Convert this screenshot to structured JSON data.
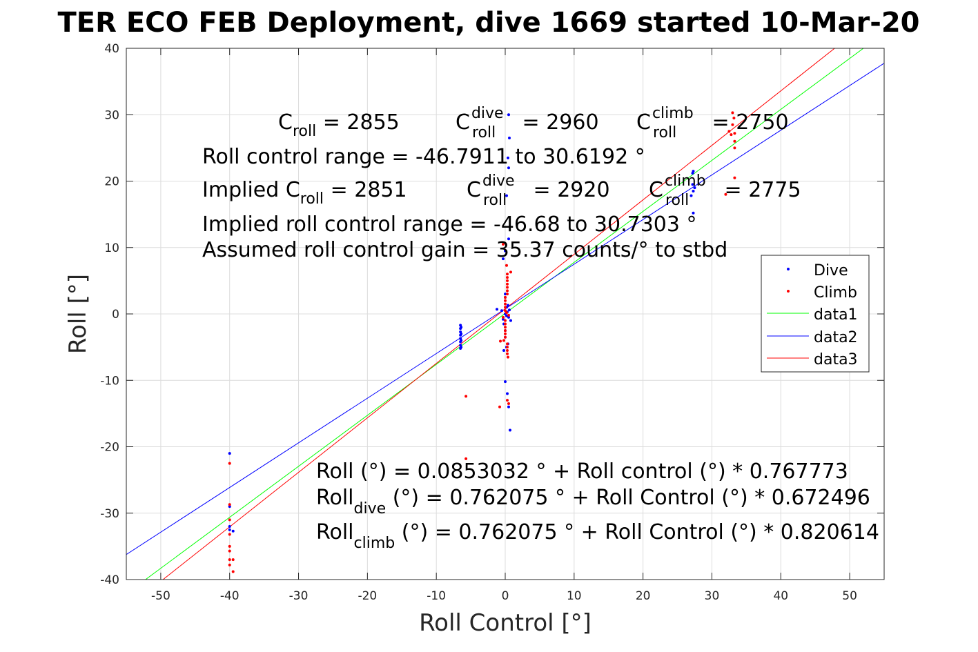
{
  "chart_data": {
    "type": "scatter",
    "title": "TER ECO FEB Deployment, dive 1669 started 10-Mar-20",
    "xlabel": "Roll Control [°]",
    "ylabel": "Roll [°]",
    "xlim": [
      -55,
      55
    ],
    "ylim": [
      -40,
      40
    ],
    "xticks": [
      -50,
      -40,
      -30,
      -20,
      -10,
      0,
      10,
      20,
      30,
      40,
      50
    ],
    "yticks": [
      -40,
      -30,
      -20,
      -10,
      0,
      10,
      20,
      30,
      40
    ],
    "xtick_labels": [
      "-50",
      "-40",
      "-30",
      "-20",
      "-10",
      "0",
      "10",
      "20",
      "30",
      "40",
      "50"
    ],
    "ytick_labels": [
      "-40",
      "-30",
      "-20",
      "-10",
      "0",
      "10",
      "20",
      "30",
      "40"
    ],
    "grid": true,
    "legend_position": "right",
    "series": [
      {
        "name": "Dive",
        "kind": "points",
        "color": "#0000ff",
        "points": [
          [
            -40,
            -21
          ],
          [
            -40,
            -29
          ],
          [
            -40,
            -32
          ],
          [
            -40,
            -32.5
          ],
          [
            -39.5,
            -32.7
          ],
          [
            -6.5,
            -1.7
          ],
          [
            -6.5,
            -2.2
          ],
          [
            -6.5,
            -2.7
          ],
          [
            -6.5,
            -3.2
          ],
          [
            -6.5,
            -3.7
          ],
          [
            -6.5,
            -4.2
          ],
          [
            -6.5,
            -4.7
          ],
          [
            -6.5,
            -5.2
          ],
          [
            -6.4,
            -2.0
          ],
          [
            -6.4,
            -3.0
          ],
          [
            -6.4,
            -4.0
          ],
          [
            -6.4,
            -5.0
          ],
          [
            -1.2,
            0.7
          ],
          [
            -0.5,
            0.5
          ],
          [
            0,
            0
          ],
          [
            0.2,
            -0.3
          ],
          [
            0.3,
            0.3
          ],
          [
            0.5,
            -0.5
          ],
          [
            0.4,
            1.3
          ],
          [
            0.6,
            0.6
          ],
          [
            0.8,
            -1.0
          ],
          [
            -0.3,
            -0.8
          ],
          [
            0,
            2.5
          ],
          [
            0,
            3.0
          ],
          [
            0.2,
            1.0
          ],
          [
            -0.2,
            -1.5
          ],
          [
            0,
            -2.5
          ],
          [
            0,
            -3.5
          ],
          [
            0.4,
            -4.5
          ],
          [
            -0.2,
            -5.5
          ],
          [
            0.2,
            -5.0
          ],
          [
            -0.3,
            8.3
          ],
          [
            0,
            9.5
          ],
          [
            0.5,
            11.3
          ],
          [
            0.2,
            17.8
          ],
          [
            0.5,
            22.0
          ],
          [
            0.4,
            23.5
          ],
          [
            0.6,
            26.5
          ],
          [
            0.5,
            30.0
          ],
          [
            0,
            -10.2
          ],
          [
            0.3,
            -12.0
          ],
          [
            0.5,
            -14.0
          ],
          [
            0.7,
            -17.5
          ],
          [
            27.2,
            21.2
          ],
          [
            27.3,
            21.5
          ],
          [
            27.2,
            19.5
          ],
          [
            27.3,
            18.5
          ],
          [
            27.0,
            17.8
          ],
          [
            27.3,
            15.2
          ],
          [
            27.5,
            19.0
          ]
        ]
      },
      {
        "name": "Climb",
        "kind": "points",
        "color": "#ff0000",
        "points": [
          [
            -40,
            -22.5
          ],
          [
            -40,
            -28.7
          ],
          [
            -40,
            -31.0
          ],
          [
            -40,
            -33.2
          ],
          [
            -40,
            -35.0
          ],
          [
            -40,
            -35.7
          ],
          [
            -40,
            -37.0
          ],
          [
            -40,
            -37.8
          ],
          [
            -39.5,
            -37.0
          ],
          [
            -39.5,
            -38.8
          ],
          [
            -5.7,
            -12.4
          ],
          [
            -5.7,
            -21.8
          ],
          [
            -0.8,
            -14.0
          ],
          [
            0.2,
            7.3
          ],
          [
            0.3,
            6.0
          ],
          [
            0.3,
            5.5
          ],
          [
            0.3,
            5.0
          ],
          [
            0.3,
            4.5
          ],
          [
            0.3,
            4.0
          ],
          [
            0.3,
            3.5
          ],
          [
            0.3,
            3.0
          ],
          [
            0,
            2.5
          ],
          [
            0,
            2.0
          ],
          [
            0,
            1.5
          ],
          [
            0,
            1.0
          ],
          [
            0,
            0.5
          ],
          [
            0.2,
            0.2
          ],
          [
            0.5,
            -0.2
          ],
          [
            -0.3,
            -0.5
          ],
          [
            0,
            -1.0
          ],
          [
            0,
            -1.5
          ],
          [
            0,
            -2.0
          ],
          [
            0,
            -2.5
          ],
          [
            0,
            -3.0
          ],
          [
            0,
            -3.5
          ],
          [
            -0.2,
            -4.0
          ],
          [
            -0.7,
            -4.1
          ],
          [
            0.3,
            -4.5
          ],
          [
            0.3,
            -5.0
          ],
          [
            0.3,
            -5.5
          ],
          [
            0.3,
            -6.0
          ],
          [
            0.4,
            -6.5
          ],
          [
            0.3,
            -13.0
          ],
          [
            0.5,
            -13.5
          ],
          [
            -0.3,
            10.5
          ],
          [
            0.8,
            6.3
          ],
          [
            32.5,
            27.5
          ],
          [
            32.8,
            27.0
          ],
          [
            33.0,
            30.3
          ],
          [
            33.2,
            29.5
          ],
          [
            33.0,
            28.5
          ],
          [
            33.3,
            27.2
          ],
          [
            33.3,
            26.0
          ],
          [
            33.3,
            25.0
          ],
          [
            33.3,
            20.5
          ],
          [
            32.0,
            18.0
          ]
        ]
      },
      {
        "name": "data1",
        "kind": "line",
        "color": "#00ff00",
        "intercept": 0.0853032,
        "slope": 0.767773
      },
      {
        "name": "data2",
        "kind": "line",
        "color": "#0000ff",
        "intercept": 0.762075,
        "slope": 0.672496
      },
      {
        "name": "data3",
        "kind": "line",
        "color": "#ff0000",
        "intercept": 0.762075,
        "slope": 0.820614
      }
    ],
    "annotations": {
      "c_roll": {
        "prefix": "C",
        "sub": "roll",
        "suffix": " = 2855"
      },
      "c_roll_dive": {
        "prefix": "C",
        "sup": "dive",
        "sub": "roll",
        "suffix": " = 2960"
      },
      "c_roll_climb": {
        "prefix": "C",
        "sup": "climb",
        "sub": "roll",
        "suffix": " = 2750"
      },
      "range": "Roll control range = -46.7911 to 30.6192 °",
      "implied_c_roll": {
        "prefix": "Implied C",
        "sub": "roll",
        "suffix": " = 2851"
      },
      "implied_c_dive": {
        "prefix": "C",
        "sup": "dive",
        "sub": "roll",
        "suffix": " = 2920"
      },
      "implied_c_climb": {
        "prefix": "C",
        "sup": "climb",
        "sub": "roll",
        "suffix": " = 2775"
      },
      "implied_range": "Implied roll control range = -46.68 to 30.7303 °",
      "gain": "Assumed roll control gain = 35.37 counts/° to stbd",
      "fit_all": "Roll (°) = 0.0853032 ° + Roll control (°) * 0.767773",
      "fit_dive": {
        "prefix": "Roll",
        "sub": "dive",
        "suffix": " (°) = 0.762075 ° + Roll Control (°) * 0.672496"
      },
      "fit_climb": {
        "prefix": "Roll",
        "sub": "climb",
        "suffix": " (°) = 0.762075 ° + Roll Control (°) * 0.820614"
      }
    }
  }
}
